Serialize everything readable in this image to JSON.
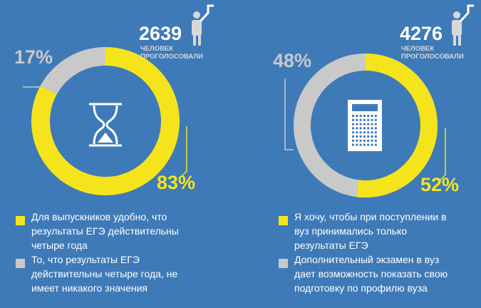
{
  "chart_data": [
    {
      "type": "pie",
      "votes": 2639,
      "votes_caption": [
        "ЧЕЛОВЕК",
        "ПРОГОЛОСОВАЛИ"
      ],
      "categories": [
        "Для выпускников удобно, что результаты ЕГЭ действительны четыре года",
        "То, что результаты ЕГЭ действительны четыре года, не имеет никакого значения"
      ],
      "values": [
        83,
        17
      ],
      "value_labels": [
        "83%",
        "17%"
      ],
      "colors": [
        "#f5e41c",
        "#c9c9c9"
      ]
    },
    {
      "type": "pie",
      "votes": 4276,
      "votes_caption": [
        "ЧЕЛОВЕК",
        "ПРОГОЛОСОВАЛИ"
      ],
      "categories": [
        "Я хочу, чтобы при поступлении в вуз принимались только результаты ЕГЭ",
        "Дополнительный экзамен в вуз дает возможность показать свою подготовку по профилю вуза"
      ],
      "values": [
        52,
        48
      ],
      "value_labels": [
        "52%",
        "48%"
      ],
      "colors": [
        "#f5e41c",
        "#c9c9c9"
      ]
    }
  ]
}
